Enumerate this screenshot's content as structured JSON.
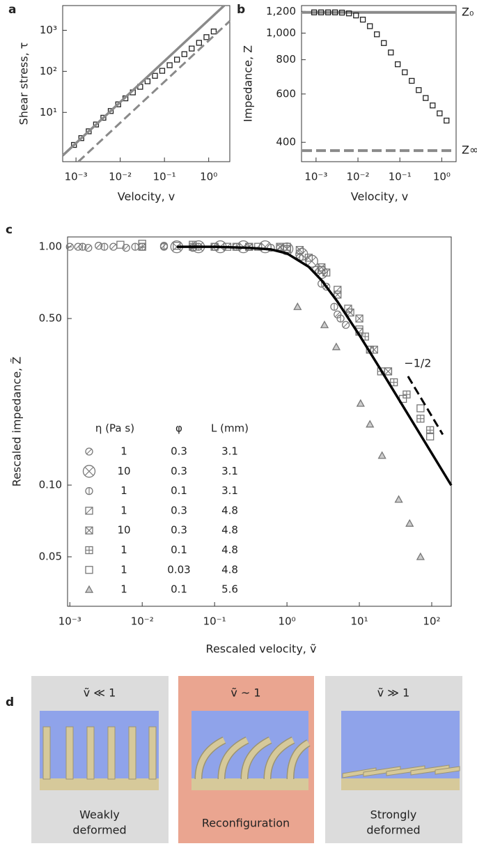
{
  "chart_data": [
    {
      "type": "scatter",
      "panel_label": "a",
      "xlabel": "Velocity, v",
      "ylabel": "Shear stress, τ",
      "log_x": true,
      "log_y": true,
      "xlim": [
        0.0005,
        3
      ],
      "ylim": [
        0.63,
        4000
      ],
      "xticks": [
        {
          "value": 0.001,
          "label": "10⁻³"
        },
        {
          "value": 0.01,
          "label": "10⁻²"
        },
        {
          "value": 0.1,
          "label": "10⁻¹"
        },
        {
          "value": 1,
          "label": "10⁰"
        }
      ],
      "yticks": [
        {
          "value": 10,
          "label": "10¹"
        },
        {
          "value": 100,
          "label": "10²"
        },
        {
          "value": 1000,
          "label": "10³"
        }
      ],
      "series": [
        {
          "style": "markers",
          "marker": "square",
          "color": "#222",
          "x": [
            0.0009,
            0.00132,
            0.00194,
            0.00284,
            0.00416,
            0.0061,
            0.009,
            0.0131,
            0.0193,
            0.0283,
            0.0415,
            0.061,
            0.089,
            0.131,
            0.192,
            0.282,
            0.413,
            0.606,
            0.89,
            1.3
          ],
          "values": [
            1.61,
            2.36,
            3.46,
            5.07,
            7.41,
            10.8,
            15.7,
            22.0,
            30.7,
            42.0,
            57.3,
            77.8,
            103,
            141,
            193,
            262,
            359,
            495,
            681,
            936
          ]
        },
        {
          "style": "line",
          "dash": false,
          "color": "#8a8a8a",
          "x": [
            0.0005,
            2.24
          ],
          "values": [
            0.89,
            4000
          ]
        },
        {
          "style": "line",
          "dash": true,
          "color": "#8a8a8a",
          "x": [
            0.00113,
            3
          ],
          "values": [
            0.63,
            1680
          ]
        }
      ]
    },
    {
      "type": "scatter",
      "panel_label": "b",
      "xlabel": "Velocity, v",
      "ylabel": "Impedance, Z",
      "log_x": true,
      "log_y": true,
      "xlim": [
        0.00045,
        2.2
      ],
      "ylim": [
        340,
        1260
      ],
      "xticks": [
        {
          "value": 0.001,
          "label": "10⁻³"
        },
        {
          "value": 0.01,
          "label": "10⁻²"
        },
        {
          "value": 0.1,
          "label": "10⁻¹"
        },
        {
          "value": 1,
          "label": "10⁰"
        }
      ],
      "yticks": [
        400,
        600,
        800,
        {
          "value": 1000,
          "label": "1,000"
        },
        {
          "value": 1200,
          "label": "1,200"
        }
      ],
      "reference_lines": [
        {
          "value": 1190,
          "label": "Z₀",
          "dash": false,
          "color": "#8a8a8a"
        },
        {
          "value": 373,
          "label": "Z∞",
          "dash": true,
          "color": "#8a8a8a"
        }
      ],
      "series": [
        {
          "style": "markers",
          "marker": "square",
          "color": "#222",
          "x": [
            0.0009,
            0.00132,
            0.00194,
            0.00284,
            0.00416,
            0.0061,
            0.009,
            0.0131,
            0.0193,
            0.0283,
            0.0415,
            0.061,
            0.089,
            0.131,
            0.192,
            0.282,
            0.413,
            0.606,
            0.89,
            1.3
          ],
          "values": [
            1190,
            1190,
            1190,
            1190,
            1188,
            1180,
            1160,
            1120,
            1060,
            990,
            920,
            850,
            770,
            720,
            670,
            620,
            580,
            545,
            510,
            480
          ]
        }
      ]
    },
    {
      "type": "scatter",
      "panel_label": "c",
      "xlabel": "Rescaled velocity, ṽ",
      "ylabel": "Rescaled impedance, Z̃",
      "log_x": true,
      "log_y": true,
      "xlim": [
        0.00093,
        186
      ],
      "ylim": [
        0.031,
        1.1
      ],
      "xticks": [
        {
          "value": 0.001,
          "label": "10⁻³"
        },
        {
          "value": 0.01,
          "label": "10⁻²"
        },
        {
          "value": 0.1,
          "label": "10⁻¹"
        },
        {
          "value": 1,
          "label": "10⁰"
        },
        {
          "value": 10,
          "label": "10¹"
        },
        {
          "value": 100,
          "label": "10²"
        }
      ],
      "yticks": [
        0.05,
        {
          "value": 0.1,
          "label": "0.10"
        },
        {
          "value": 0.5,
          "label": "0.50"
        },
        {
          "value": 1,
          "label": "1.00"
        }
      ],
      "legend": {
        "columns": [
          "η (Pa s)",
          "φ",
          "L (mm)"
        ]
      },
      "series": [
        {
          "style": "markers",
          "marker": "circle-slash",
          "color": "#777",
          "eta": "1",
          "phi": "0.3",
          "L": "3.1",
          "x": [
            0.001,
            0.0013,
            0.0018,
            0.0025,
            0.004,
            0.006,
            0.01,
            0.02,
            0.05,
            0.1,
            0.3,
            0.8,
            2.5,
            3.5,
            5,
            6.5
          ],
          "values": [
            1,
            1,
            0.99,
            1.01,
            1,
            0.99,
            1,
            1.01,
            0.99,
            1,
            1,
            0.99,
            0.8,
            0.68,
            0.52,
            0.47
          ]
        },
        {
          "style": "markers",
          "marker": "circle-x",
          "color": "#777",
          "eta": "10",
          "phi": "0.3",
          "L": "3.1",
          "x": [
            0.03,
            0.06,
            0.12,
            0.25,
            0.5,
            1,
            1.6,
            2.2,
            3
          ],
          "values": [
            1,
            1,
            1,
            1,
            1,
            0.98,
            0.93,
            0.87,
            0.78
          ]
        },
        {
          "style": "markers",
          "marker": "circle-bar",
          "color": "#777",
          "eta": "1",
          "phi": "0.1",
          "L": "3.1",
          "x": [
            0.0015,
            0.003,
            0.008,
            0.02,
            0.06,
            0.2,
            0.6,
            1.5,
            3,
            4.5,
            5.5
          ],
          "values": [
            1,
            1,
            1,
            1,
            1,
            1,
            0.99,
            0.9,
            0.7,
            0.56,
            0.5
          ]
        },
        {
          "style": "markers",
          "marker": "square-slash",
          "color": "#777",
          "eta": "1",
          "phi": "0.3",
          "L": "4.8",
          "x": [
            0.05,
            0.15,
            0.4,
            1,
            2,
            3.5,
            5,
            7,
            10,
            14
          ],
          "values": [
            1,
            1,
            1,
            0.98,
            0.9,
            0.78,
            0.66,
            0.55,
            0.44,
            0.37
          ]
        },
        {
          "style": "markers",
          "marker": "square-x",
          "color": "#777",
          "eta": "10",
          "phi": "0.3",
          "L": "4.8",
          "x": [
            0.3,
            0.8,
            1.5,
            3,
            5,
            7.5,
            10,
            16,
            25
          ],
          "values": [
            1,
            1,
            0.97,
            0.82,
            0.63,
            0.53,
            0.5,
            0.37,
            0.3
          ]
        },
        {
          "style": "markers",
          "marker": "square-plus",
          "color": "#777",
          "eta": "1",
          "phi": "0.1",
          "L": "4.8",
          "x": [
            0.01,
            0.05,
            0.2,
            1,
            12,
            20,
            30,
            45,
            70,
            95
          ],
          "values": [
            1,
            1.02,
            1,
            1,
            0.42,
            0.3,
            0.27,
            0.24,
            0.19,
            0.17
          ]
        },
        {
          "style": "markers",
          "marker": "square",
          "color": "#777",
          "eta": "1",
          "phi": "0.03",
          "L": "4.8",
          "x": [
            0.005,
            0.01,
            0.03,
            0.1,
            0.3,
            1,
            3,
            10,
            25,
            40,
            70,
            95
          ],
          "values": [
            1.02,
            1.03,
            1.01,
            1,
            1,
            0.98,
            0.8,
            0.45,
            0.3,
            0.23,
            0.21,
            0.16
          ]
        },
        {
          "style": "markers",
          "marker": "triangle",
          "color": "#777",
          "eta": "1",
          "phi": "0.1",
          "L": "5.6",
          "x": [
            1.4,
            3.3,
            4.8,
            10.4,
            14,
            20.6,
            35,
            49.5,
            70
          ],
          "values": [
            0.56,
            0.47,
            0.38,
            0.22,
            0.18,
            0.133,
            0.087,
            0.069,
            0.05
          ]
        },
        {
          "style": "line",
          "dash": false,
          "color": "#000",
          "x": [
            0.03,
            0.1,
            0.3,
            0.6,
            1,
            2,
            3,
            5,
            10,
            20,
            50,
            100,
            186
          ],
          "values": [
            1,
            1,
            0.99,
            0.975,
            0.938,
            0.824,
            0.724,
            0.588,
            0.426,
            0.303,
            0.192,
            0.136,
            0.0998
          ]
        },
        {
          "style": "line",
          "dash": true,
          "color": "#000",
          "label": "−1/2",
          "x": [
            47,
            142
          ],
          "values": [
            0.286,
            0.163
          ]
        }
      ]
    }
  ],
  "diagram": {
    "panel_label": "d",
    "boxes": [
      {
        "title": "ṽ ≪ 1",
        "caption": [
          "Weakly",
          "deformed"
        ]
      },
      {
        "title": "ṽ ~ 1",
        "caption": [
          "Reconfiguration"
        ]
      },
      {
        "title": "ṽ ≫ 1",
        "caption": [
          "Strongly",
          "deformed"
        ]
      }
    ]
  }
}
